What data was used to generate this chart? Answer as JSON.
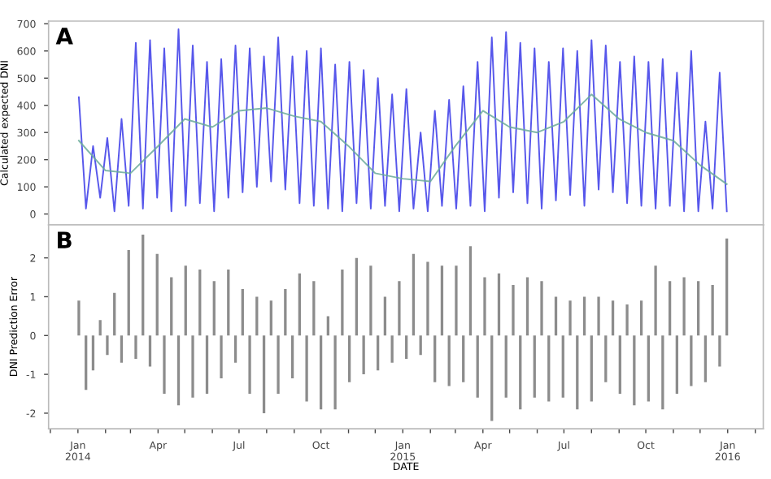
{
  "chart_data": [
    {
      "type": "line",
      "ylabel": "Calculated expected DNI",
      "annotations": [
        "A"
      ],
      "tick_labels": "y",
      "grid": false,
      "legend": false,
      "x": [
        "2014-01-02",
        "2014-01-10",
        "2014-01-18",
        "2014-01-26",
        "2014-02-03",
        "2014-02-11",
        "2014-02-19",
        "2014-02-27",
        "2014-03-07",
        "2014-03-15",
        "2014-03-23",
        "2014-03-31",
        "2014-04-08",
        "2014-04-16",
        "2014-04-24",
        "2014-05-02",
        "2014-05-10",
        "2014-05-18",
        "2014-05-26",
        "2014-06-03",
        "2014-06-11",
        "2014-06-19",
        "2014-06-27",
        "2014-07-05",
        "2014-07-13",
        "2014-07-21",
        "2014-07-29",
        "2014-08-06",
        "2014-08-14",
        "2014-08-22",
        "2014-08-30",
        "2014-09-07",
        "2014-09-15",
        "2014-09-23",
        "2014-10-01",
        "2014-10-09",
        "2014-10-17",
        "2014-10-25",
        "2014-11-02",
        "2014-11-10",
        "2014-11-18",
        "2014-11-26",
        "2014-12-04",
        "2014-12-12",
        "2014-12-20",
        "2014-12-28",
        "2015-01-05",
        "2015-01-13",
        "2015-01-21",
        "2015-01-29",
        "2015-02-06",
        "2015-02-14",
        "2015-02-22",
        "2015-03-02",
        "2015-03-10",
        "2015-03-18",
        "2015-03-26",
        "2015-04-03",
        "2015-04-11",
        "2015-04-19",
        "2015-04-27",
        "2015-05-05",
        "2015-05-13",
        "2015-05-21",
        "2015-05-29",
        "2015-06-06",
        "2015-06-14",
        "2015-06-22",
        "2015-06-30",
        "2015-07-08",
        "2015-07-16",
        "2015-07-24",
        "2015-08-01",
        "2015-08-09",
        "2015-08-17",
        "2015-08-25",
        "2015-09-02",
        "2015-09-10",
        "2015-09-18",
        "2015-09-26",
        "2015-10-04",
        "2015-10-12",
        "2015-10-20",
        "2015-10-28",
        "2015-11-05",
        "2015-11-13",
        "2015-11-21",
        "2015-11-29",
        "2015-12-07",
        "2015-12-15",
        "2015-12-23",
        "2015-12-31"
      ],
      "series": [
        {
          "color": "#3a3ae8",
          "values": [
            430,
            20,
            250,
            60,
            280,
            10,
            350,
            30,
            630,
            20,
            640,
            60,
            610,
            10,
            680,
            30,
            620,
            40,
            560,
            10,
            570,
            60,
            620,
            80,
            610,
            100,
            580,
            120,
            650,
            90,
            580,
            40,
            600,
            30,
            610,
            20,
            550,
            10,
            560,
            40,
            530,
            20,
            500,
            30,
            440,
            10,
            460,
            20,
            300,
            10,
            380,
            30,
            420,
            20,
            470,
            30,
            560,
            10,
            650,
            60,
            670,
            80,
            630,
            40,
            610,
            20,
            560,
            50,
            610,
            70,
            600,
            30,
            640,
            90,
            620,
            80,
            560,
            40,
            580,
            30,
            560,
            20,
            570,
            30,
            520,
            10,
            600,
            10,
            340,
            20,
            520,
            10
          ]
        },
        {
          "color": "#6aaa9a",
          "x": [
            "2014-01-02",
            "2014-02-01",
            "2014-03-01",
            "2014-04-01",
            "2014-05-01",
            "2014-06-01",
            "2014-07-01",
            "2014-08-01",
            "2014-09-01",
            "2014-10-01",
            "2014-11-01",
            "2014-12-01",
            "2015-01-01",
            "2015-02-01",
            "2015-03-01",
            "2015-04-01",
            "2015-05-01",
            "2015-06-01",
            "2015-07-01",
            "2015-08-01",
            "2015-09-01",
            "2015-10-01",
            "2015-11-01",
            "2015-12-01",
            "2015-12-31"
          ],
          "values": [
            270,
            160,
            150,
            250,
            350,
            320,
            380,
            390,
            360,
            340,
            250,
            150,
            130,
            120,
            250,
            380,
            320,
            300,
            340,
            440,
            350,
            300,
            270,
            180,
            110
          ]
        }
      ],
      "xlim": [
        "2013-11-29",
        "2016-02-10"
      ],
      "ylim": [
        -40,
        710
      ],
      "yticks": [
        0,
        100,
        200,
        300,
        400,
        500,
        600,
        700
      ],
      "xticks": [
        {
          "value": "2013-12-01",
          "label": null
        },
        {
          "value": "2014-01-01",
          "label": null
        },
        {
          "value": "2014-02-01",
          "label": null
        },
        {
          "value": "2014-03-01",
          "label": null
        },
        {
          "value": "2014-04-01",
          "label": null
        },
        {
          "value": "2014-05-01",
          "label": null
        },
        {
          "value": "2014-06-01",
          "label": null
        },
        {
          "value": "2014-07-01",
          "label": null
        },
        {
          "value": "2014-08-01",
          "label": null
        },
        {
          "value": "2014-09-01",
          "label": null
        },
        {
          "value": "2014-10-01",
          "label": null
        },
        {
          "value": "2014-11-01",
          "label": null
        },
        {
          "value": "2014-12-01",
          "label": null
        },
        {
          "value": "2015-01-01",
          "label": null
        },
        {
          "value": "2015-02-01",
          "label": null
        },
        {
          "value": "2015-03-01",
          "label": null
        },
        {
          "value": "2015-04-01",
          "label": null
        },
        {
          "value": "2015-05-01",
          "label": null
        },
        {
          "value": "2015-06-01",
          "label": null
        },
        {
          "value": "2015-07-01",
          "label": null
        },
        {
          "value": "2015-08-01",
          "label": null
        },
        {
          "value": "2015-09-01",
          "label": null
        },
        {
          "value": "2015-10-01",
          "label": null
        },
        {
          "value": "2015-11-01",
          "label": null
        },
        {
          "value": "2015-12-01",
          "label": null
        },
        {
          "value": "2016-01-01",
          "label": null
        },
        {
          "value": "2016-02-01",
          "label": null
        }
      ]
    },
    {
      "type": "bar",
      "ylabel": "DNI Prediction Error",
      "xlabel": "DATE",
      "annotations": [
        "B"
      ],
      "grid": false,
      "legend": false,
      "x": [
        "2014-01-02",
        "2014-01-10",
        "2014-01-18",
        "2014-01-26",
        "2014-02-03",
        "2014-02-11",
        "2014-02-19",
        "2014-02-27",
        "2014-03-07",
        "2014-03-15",
        "2014-03-23",
        "2014-03-31",
        "2014-04-08",
        "2014-04-16",
        "2014-04-24",
        "2014-05-02",
        "2014-05-10",
        "2014-05-18",
        "2014-05-26",
        "2014-06-03",
        "2014-06-11",
        "2014-06-19",
        "2014-06-27",
        "2014-07-05",
        "2014-07-13",
        "2014-07-21",
        "2014-07-29",
        "2014-08-06",
        "2014-08-14",
        "2014-08-22",
        "2014-08-30",
        "2014-09-07",
        "2014-09-15",
        "2014-09-23",
        "2014-10-01",
        "2014-10-09",
        "2014-10-17",
        "2014-10-25",
        "2014-11-02",
        "2014-11-10",
        "2014-11-18",
        "2014-11-26",
        "2014-12-04",
        "2014-12-12",
        "2014-12-20",
        "2014-12-28",
        "2015-01-05",
        "2015-01-13",
        "2015-01-21",
        "2015-01-29",
        "2015-02-06",
        "2015-02-14",
        "2015-02-22",
        "2015-03-02",
        "2015-03-10",
        "2015-03-18",
        "2015-03-26",
        "2015-04-03",
        "2015-04-11",
        "2015-04-19",
        "2015-04-27",
        "2015-05-05",
        "2015-05-13",
        "2015-05-21",
        "2015-05-29",
        "2015-06-06",
        "2015-06-14",
        "2015-06-22",
        "2015-06-30",
        "2015-07-08",
        "2015-07-16",
        "2015-07-24",
        "2015-08-01",
        "2015-08-09",
        "2015-08-17",
        "2015-08-25",
        "2015-09-02",
        "2015-09-10",
        "2015-09-18",
        "2015-09-26",
        "2015-10-04",
        "2015-10-12",
        "2015-10-20",
        "2015-10-28",
        "2015-11-05",
        "2015-11-13",
        "2015-11-21",
        "2015-11-29",
        "2015-12-07",
        "2015-12-15",
        "2015-12-23",
        "2015-12-31"
      ],
      "series": [
        {
          "color": "#8c8c8c",
          "values": [
            0.9,
            -1.4,
            -0.9,
            0.4,
            -0.5,
            1.1,
            -0.7,
            2.2,
            -0.6,
            2.6,
            -0.8,
            2.1,
            -1.5,
            1.5,
            -1.8,
            1.8,
            -1.6,
            1.7,
            -1.5,
            1.4,
            -1.1,
            1.7,
            -0.7,
            1.2,
            -1.5,
            1.0,
            -2.0,
            0.9,
            -1.5,
            1.2,
            -1.1,
            1.6,
            -1.7,
            1.4,
            -1.9,
            0.5,
            -1.9,
            1.7,
            -1.2,
            2.0,
            -1.0,
            1.8,
            -0.9,
            1.0,
            -0.7,
            1.4,
            -0.6,
            2.1,
            -0.5,
            1.9,
            -1.2,
            1.8,
            -1.3,
            1.8,
            -1.2,
            2.3,
            -1.6,
            1.5,
            -2.2,
            1.6,
            -1.6,
            1.3,
            -1.9,
            1.5,
            -1.6,
            1.4,
            -1.7,
            1.0,
            -1.6,
            0.9,
            -1.9,
            1.0,
            -1.7,
            1.0,
            -1.2,
            0.9,
            -1.5,
            0.8,
            -1.8,
            0.9,
            -1.7,
            1.8,
            -1.9,
            1.4,
            -1.5,
            1.5,
            -1.3,
            1.4,
            -1.2,
            1.3,
            -0.8,
            2.5
          ]
        }
      ],
      "xlim": [
        "2013-11-29",
        "2016-02-10"
      ],
      "ylim": [
        -2.4,
        2.85
      ],
      "yticks": [
        -2,
        -1,
        0,
        1,
        2
      ],
      "xticks": [
        {
          "value": "2013-12-01",
          "label": null
        },
        {
          "value": "2014-01-01",
          "label": "Jan\n2014"
        },
        {
          "value": "2014-02-01",
          "label": null
        },
        {
          "value": "2014-03-01",
          "label": null
        },
        {
          "value": "2014-04-01",
          "label": "Apr"
        },
        {
          "value": "2014-05-01",
          "label": null
        },
        {
          "value": "2014-06-01",
          "label": null
        },
        {
          "value": "2014-07-01",
          "label": "Jul"
        },
        {
          "value": "2014-08-01",
          "label": null
        },
        {
          "value": "2014-09-01",
          "label": null
        },
        {
          "value": "2014-10-01",
          "label": "Oct"
        },
        {
          "value": "2014-11-01",
          "label": null
        },
        {
          "value": "2014-12-01",
          "label": null
        },
        {
          "value": "2015-01-01",
          "label": "Jan\n2015"
        },
        {
          "value": "2015-02-01",
          "label": null
        },
        {
          "value": "2015-03-01",
          "label": null
        },
        {
          "value": "2015-04-01",
          "label": "Apr"
        },
        {
          "value": "2015-05-01",
          "label": null
        },
        {
          "value": "2015-06-01",
          "label": null
        },
        {
          "value": "2015-07-01",
          "label": "Jul"
        },
        {
          "value": "2015-08-01",
          "label": null
        },
        {
          "value": "2015-09-01",
          "label": null
        },
        {
          "value": "2015-10-01",
          "label": "Oct"
        },
        {
          "value": "2015-11-01",
          "label": null
        },
        {
          "value": "2015-12-01",
          "label": null
        },
        {
          "value": "2016-01-01",
          "label": "Jan\n2016"
        },
        {
          "value": "2016-02-01",
          "label": null
        }
      ]
    }
  ]
}
